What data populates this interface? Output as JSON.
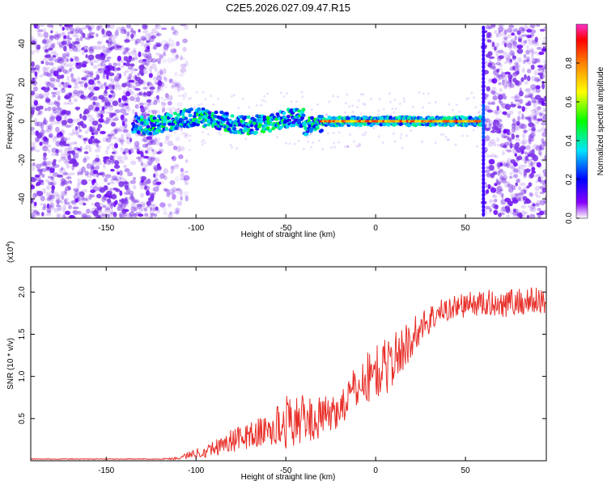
{
  "title": "C2E5.2026.027.09.47.R15",
  "colors": {
    "snr_line": "#e8302a",
    "speckle": "#7a2ee8",
    "axis": "#000000"
  },
  "chart_data": [
    {
      "type": "heatmap",
      "title": "C2E5.2026.027.09.47.R15",
      "xlabel": "Height of straight line (km)",
      "ylabel": "Frequency (Hz)",
      "xlim": [
        -192,
        95
      ],
      "ylim": [
        -50,
        50
      ],
      "x_ticks": [
        -150,
        -100,
        -50,
        0,
        50
      ],
      "y_ticks": [
        -40,
        -20,
        0,
        20,
        40
      ],
      "x_tick_labels": [
        "-150",
        "-100",
        "-50",
        "0",
        "50"
      ],
      "y_tick_labels": [
        "-40",
        "-20",
        "0",
        "20",
        "40"
      ],
      "colorbar": {
        "label": "Normalized spectral amplitude",
        "range": [
          0,
          1
        ],
        "ticks": [
          0.0,
          0.2,
          0.4,
          0.6,
          0.8
        ],
        "tick_labels": [
          "0.0",
          "0.2",
          "0.4",
          "0.6",
          "0.8"
        ],
        "colormap": [
          "#ffffff",
          "#8a00ff",
          "#0000ff",
          "#00e5ff",
          "#00ff00",
          "#ffff00",
          "#ff8000",
          "#ff0000",
          "#ff33cc"
        ]
      },
      "features": {
        "noise_left_x": [
          -192,
          -120
        ],
        "noise_right_x": [
          60,
          95
        ],
        "signal_band_x": [
          -135,
          60
        ],
        "signal_center_hz": 0,
        "strong_line_x": [
          -30,
          58
        ],
        "strong_line_amplitude": 0.9
      }
    },
    {
      "type": "line",
      "xlabel": "Height of straight line (km)",
      "ylabel": "SNR (10 * v/v)",
      "scale_label": "(x10",
      "scale_exponent": "4",
      "xlim": [
        -192,
        95
      ],
      "ylim": [
        0,
        2.3
      ],
      "x_ticks": [
        -150,
        -100,
        -50,
        0,
        50
      ],
      "x_tick_labels": [
        "-150",
        "-100",
        "-50",
        "0",
        "50"
      ],
      "y_ticks": [
        0.5,
        1.0,
        1.5,
        2.0
      ],
      "y_tick_labels": [
        "0.5",
        "1.0",
        "1.5",
        "2.0"
      ],
      "series": [
        {
          "name": "SNR",
          "x": [
            -192,
            -180,
            -170,
            -160,
            -150,
            -140,
            -130,
            -120,
            -110,
            -105,
            -100,
            -95,
            -90,
            -85,
            -80,
            -75,
            -70,
            -65,
            -60,
            -55,
            -50,
            -45,
            -40,
            -35,
            -30,
            -25,
            -20,
            -15,
            -10,
            -5,
            0,
            5,
            10,
            15,
            20,
            25,
            30,
            35,
            40,
            45,
            50,
            55,
            60,
            65,
            70,
            75,
            80,
            85,
            90,
            95
          ],
          "values": [
            0.02,
            0.02,
            0.02,
            0.02,
            0.02,
            0.02,
            0.02,
            0.02,
            0.03,
            0.06,
            0.09,
            0.12,
            0.15,
            0.2,
            0.24,
            0.27,
            0.3,
            0.33,
            0.36,
            0.4,
            0.46,
            0.48,
            0.5,
            0.48,
            0.52,
            0.55,
            0.62,
            0.75,
            0.88,
            0.98,
            1.05,
            1.1,
            1.2,
            1.32,
            1.45,
            1.58,
            1.68,
            1.75,
            1.8,
            1.83,
            1.85,
            1.86,
            1.86,
            1.87,
            1.87,
            1.88,
            1.88,
            1.89,
            1.89,
            1.89
          ],
          "noise_amplitude": [
            0.005,
            0.005,
            0.005,
            0.005,
            0.005,
            0.005,
            0.005,
            0.005,
            0.02,
            0.04,
            0.06,
            0.08,
            0.1,
            0.12,
            0.14,
            0.15,
            0.16,
            0.18,
            0.2,
            0.26,
            0.32,
            0.3,
            0.28,
            0.26,
            0.24,
            0.22,
            0.22,
            0.24,
            0.28,
            0.32,
            0.34,
            0.34,
            0.32,
            0.28,
            0.24,
            0.2,
            0.18,
            0.16,
            0.15,
            0.15,
            0.15,
            0.15,
            0.16,
            0.16,
            0.17,
            0.17,
            0.18,
            0.18,
            0.18,
            0.18
          ]
        }
      ]
    }
  ]
}
